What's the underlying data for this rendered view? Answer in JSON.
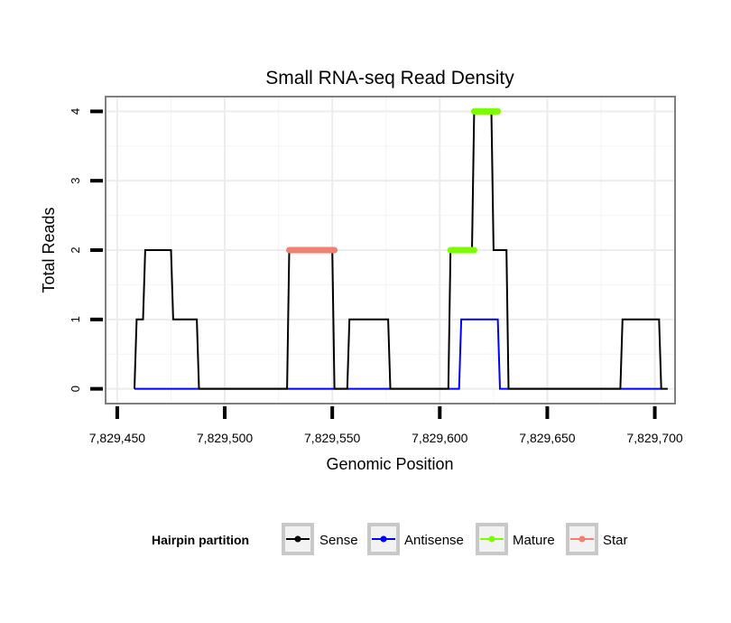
{
  "chart_data": {
    "type": "line",
    "title": "Small RNA-seq Read Density",
    "xlabel": "Genomic Position",
    "ylabel": "Total Reads",
    "xlim": [
      7829445,
      7829709
    ],
    "ylim": [
      -0.2,
      4.2
    ],
    "x_ticks": [
      7829450,
      7829500,
      7829550,
      7829600,
      7829650,
      7829700
    ],
    "x_tick_labels": [
      "7,829,450",
      "7,829,500",
      "7,829,550",
      "7,829,600",
      "7,829,650",
      "7,829,700"
    ],
    "y_ticks": [
      0,
      1,
      2,
      3,
      4
    ],
    "y_tick_labels": [
      "0",
      "1",
      "2",
      "3",
      "4"
    ],
    "grid": true,
    "legend": {
      "title": "Hairpin partition",
      "position": "bottom",
      "entries": [
        "Sense",
        "Antisense",
        "Mature",
        "Star"
      ]
    },
    "series": [
      {
        "name": "Sense",
        "color": "#000000",
        "points": [
          [
            7829458,
            0
          ],
          [
            7829459,
            1
          ],
          [
            7829462,
            1
          ],
          [
            7829463,
            2
          ],
          [
            7829475,
            2
          ],
          [
            7829476,
            1
          ],
          [
            7829487,
            1
          ],
          [
            7829488,
            0
          ],
          [
            7829529,
            0
          ],
          [
            7829530,
            2
          ],
          [
            7829550,
            2
          ],
          [
            7829551,
            0
          ],
          [
            7829557,
            0
          ],
          [
            7829558,
            1
          ],
          [
            7829576,
            1
          ],
          [
            7829577,
            0
          ],
          [
            7829604,
            0
          ],
          [
            7829605,
            2
          ],
          [
            7829615,
            2
          ],
          [
            7829616,
            4
          ],
          [
            7829624,
            4
          ],
          [
            7829625,
            2
          ],
          [
            7829631,
            2
          ],
          [
            7829632,
            0
          ],
          [
            7829684,
            0
          ],
          [
            7829685,
            1
          ],
          [
            7829702,
            1
          ],
          [
            7829703,
            0
          ],
          [
            7829706,
            0
          ]
        ]
      },
      {
        "name": "Antisense",
        "color": "#0000ff",
        "points": [
          [
            7829458,
            0
          ],
          [
            7829609,
            0
          ],
          [
            7829610,
            1
          ],
          [
            7829627,
            1
          ],
          [
            7829628,
            0
          ],
          [
            7829703,
            0
          ]
        ]
      },
      {
        "name": "Mature",
        "color": "#7cfc00",
        "segments": [
          [
            [
              7829605,
              2
            ],
            [
              7829616,
              2
            ]
          ],
          [
            [
              7829616,
              4
            ],
            [
              7829627,
              4
            ]
          ]
        ]
      },
      {
        "name": "Star",
        "color": "#f08070",
        "segments": [
          [
            [
              7829530,
              2
            ],
            [
              7829551,
              2
            ]
          ]
        ]
      }
    ]
  }
}
